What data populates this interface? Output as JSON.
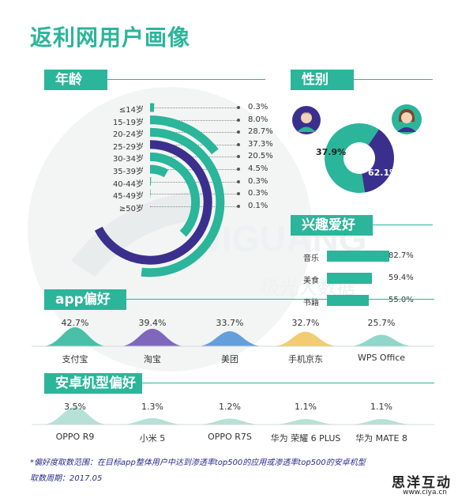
{
  "title": "返利网用户画像",
  "sections": {
    "age": "年龄",
    "gender": "性别",
    "interest": "兴趣爱好",
    "app": "app偏好",
    "phone": "安卓机型偏好"
  },
  "colors": {
    "teal": "#2bb59a",
    "purple": "#3b2f8e",
    "light_teal": "#a8dccf"
  },
  "chart_data": [
    {
      "type": "bar",
      "name": "age",
      "categories": [
        "≤14岁",
        "15-19岁",
        "20-24岁",
        "25-29岁",
        "30-34岁",
        "35-39岁",
        "40-44岁",
        "45-49岁",
        "≥50岁"
      ],
      "values": [
        0.3,
        8.0,
        28.7,
        37.3,
        20.5,
        4.5,
        0.3,
        0.3,
        0.1
      ],
      "labels": [
        "0.3%",
        "8.0%",
        "28.7%",
        "37.3%",
        "20.5%",
        "4.5%",
        "0.3%",
        "0.3%",
        "0.1%"
      ],
      "highlight_index": 3
    },
    {
      "type": "pie",
      "name": "gender",
      "values": [
        37.9,
        62.1
      ],
      "labels": [
        "37.9%",
        "62.1%"
      ],
      "icons": [
        "male-avatar-icon",
        "female-avatar-icon"
      ]
    },
    {
      "type": "bar",
      "name": "interest",
      "categories": [
        "音乐",
        "美食",
        "书籍"
      ],
      "values": [
        82.7,
        59.4,
        55.0
      ],
      "labels": [
        "82.7%",
        "59.4%",
        "55.0%"
      ]
    },
    {
      "type": "area",
      "name": "app",
      "categories": [
        "支付宝",
        "淘宝",
        "美团",
        "手机京东",
        "WPS Office"
      ],
      "values": [
        42.7,
        39.4,
        33.7,
        32.7,
        25.7
      ],
      "labels": [
        "42.7%",
        "39.4%",
        "33.7%",
        "32.7%",
        "25.7%"
      ]
    },
    {
      "type": "area",
      "name": "phone",
      "categories": [
        "OPPO R9",
        "小米 5",
        "OPPO R7S",
        "华为 荣耀 6 PLUS",
        "华为 MATE 8"
      ],
      "values": [
        3.5,
        1.3,
        1.2,
        1.1,
        1.1
      ],
      "labels": [
        "3.5%",
        "1.3%",
        "1.2%",
        "1.1%",
        "1.1%"
      ]
    }
  ],
  "footnote": {
    "line1": "*偏好度取数范围：在目标app整体用户中达到渗透率top500的应用或渗透率top500的安卓机型",
    "line2": "取数周期：2017.05"
  },
  "watermark": {
    "text_en": "JIGUANG",
    "text_cn": "极光大数据"
  },
  "brand": {
    "name": "思洋互动",
    "url": "www.ciya.cn"
  }
}
